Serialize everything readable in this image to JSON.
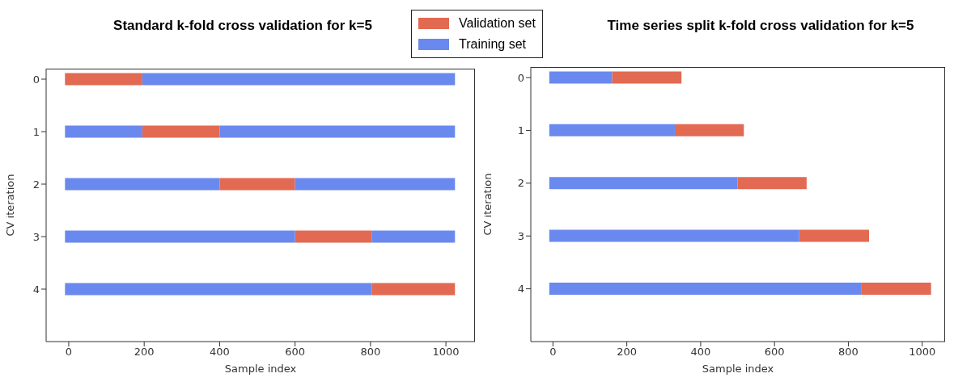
{
  "chart_data": [
    {
      "type": "bar",
      "orientation": "horizontal",
      "title": "Standard k-fold cross validation for k=5",
      "xlabel": "Sample index",
      "ylabel": "CV iteration",
      "categories": [
        "0",
        "1",
        "2",
        "3",
        "4"
      ],
      "xlim": [
        -60,
        1077
      ],
      "xticks": [
        0,
        200,
        400,
        600,
        800,
        1000
      ],
      "legend": "top right",
      "series": [
        {
          "name": "Validation set",
          "color": "#e26952",
          "values": [
            205,
            205,
            200,
            203,
            221
          ],
          "base": [
            -10,
            195,
            400,
            600,
            803
          ]
        },
        {
          "name": "Training set",
          "color": "#6a89ee",
          "values": [
            null,
            205,
            410,
            610,
            813
          ],
          "base": [
            null,
            -10,
            -10,
            -10,
            -10
          ]
        },
        {
          "color": "#6a89ee",
          "values": [
            829,
            624,
            424,
            221,
            null
          ],
          "base": [
            195,
            400,
            600,
            803,
            null
          ]
        }
      ]
    },
    {
      "type": "bar",
      "orientation": "horizontal",
      "title": "Time series split k-fold cross validation for k=5",
      "xlabel": "Sample index",
      "ylabel": "CV iteration",
      "categories": [
        "0",
        "1",
        "2",
        "3",
        "4"
      ],
      "xlim": [
        -60,
        1062
      ],
      "xticks": [
        0,
        200,
        400,
        600,
        800,
        1000
      ],
      "series": [
        {
          "color": "#e26952",
          "values": [
            188,
            187,
            187,
            189,
            188
          ],
          "base": [
            160,
            330,
            500,
            667,
            836
          ]
        },
        {
          "color": "#6a89ee",
          "values": [
            170,
            340,
            510,
            677,
            846
          ],
          "base": [
            -10,
            -10,
            -10,
            -10,
            -10
          ]
        }
      ]
    }
  ]
}
